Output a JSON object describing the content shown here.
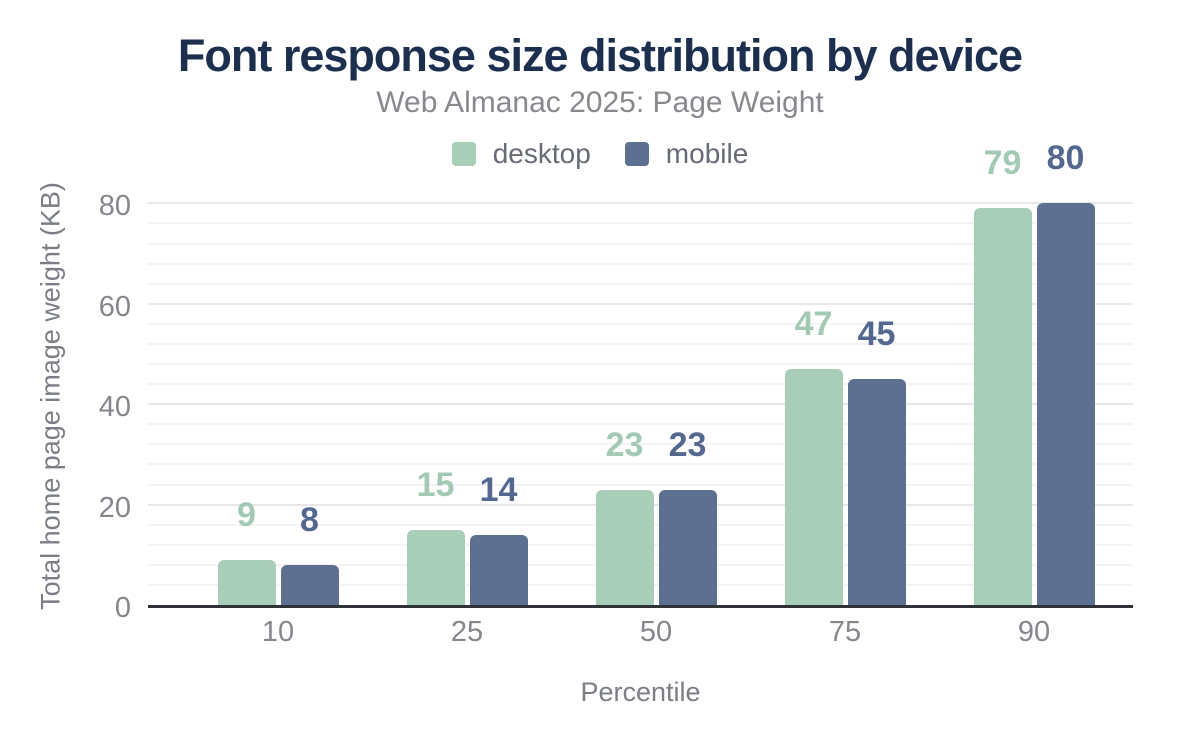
{
  "chart_data": {
    "type": "bar",
    "title": "Font response size distribution by device",
    "subtitle": "Web Almanac 2025: Page Weight",
    "xlabel": "Percentile",
    "ylabel": "Total home page image weight (KB)",
    "categories": [
      "10",
      "25",
      "50",
      "75",
      "90"
    ],
    "series": [
      {
        "name": "desktop",
        "color": "#a8cdb8",
        "label_color": "#a2c9b3",
        "values": [
          9,
          15,
          23,
          47,
          79
        ]
      },
      {
        "name": "mobile",
        "color": "#5d7090",
        "label_color": "#53678f",
        "values": [
          8,
          14,
          23,
          45,
          80
        ]
      }
    ],
    "y_ticks": [
      0,
      20,
      40,
      60,
      80
    ],
    "ylim": [
      0,
      84
    ],
    "grid": {
      "on": true,
      "minor_every": 4,
      "major_every": 20,
      "minor_color": "#f4f4f5",
      "major_color": "#e8e8ea"
    },
    "legend_position": "top-center",
    "colors": {
      "background": "#ffffff",
      "title": "#1d2f4e",
      "subtitle": "#87898e",
      "tick_label": "#84878c",
      "axis_title": "#7b7e85",
      "axis_line": "#2f3338"
    }
  }
}
